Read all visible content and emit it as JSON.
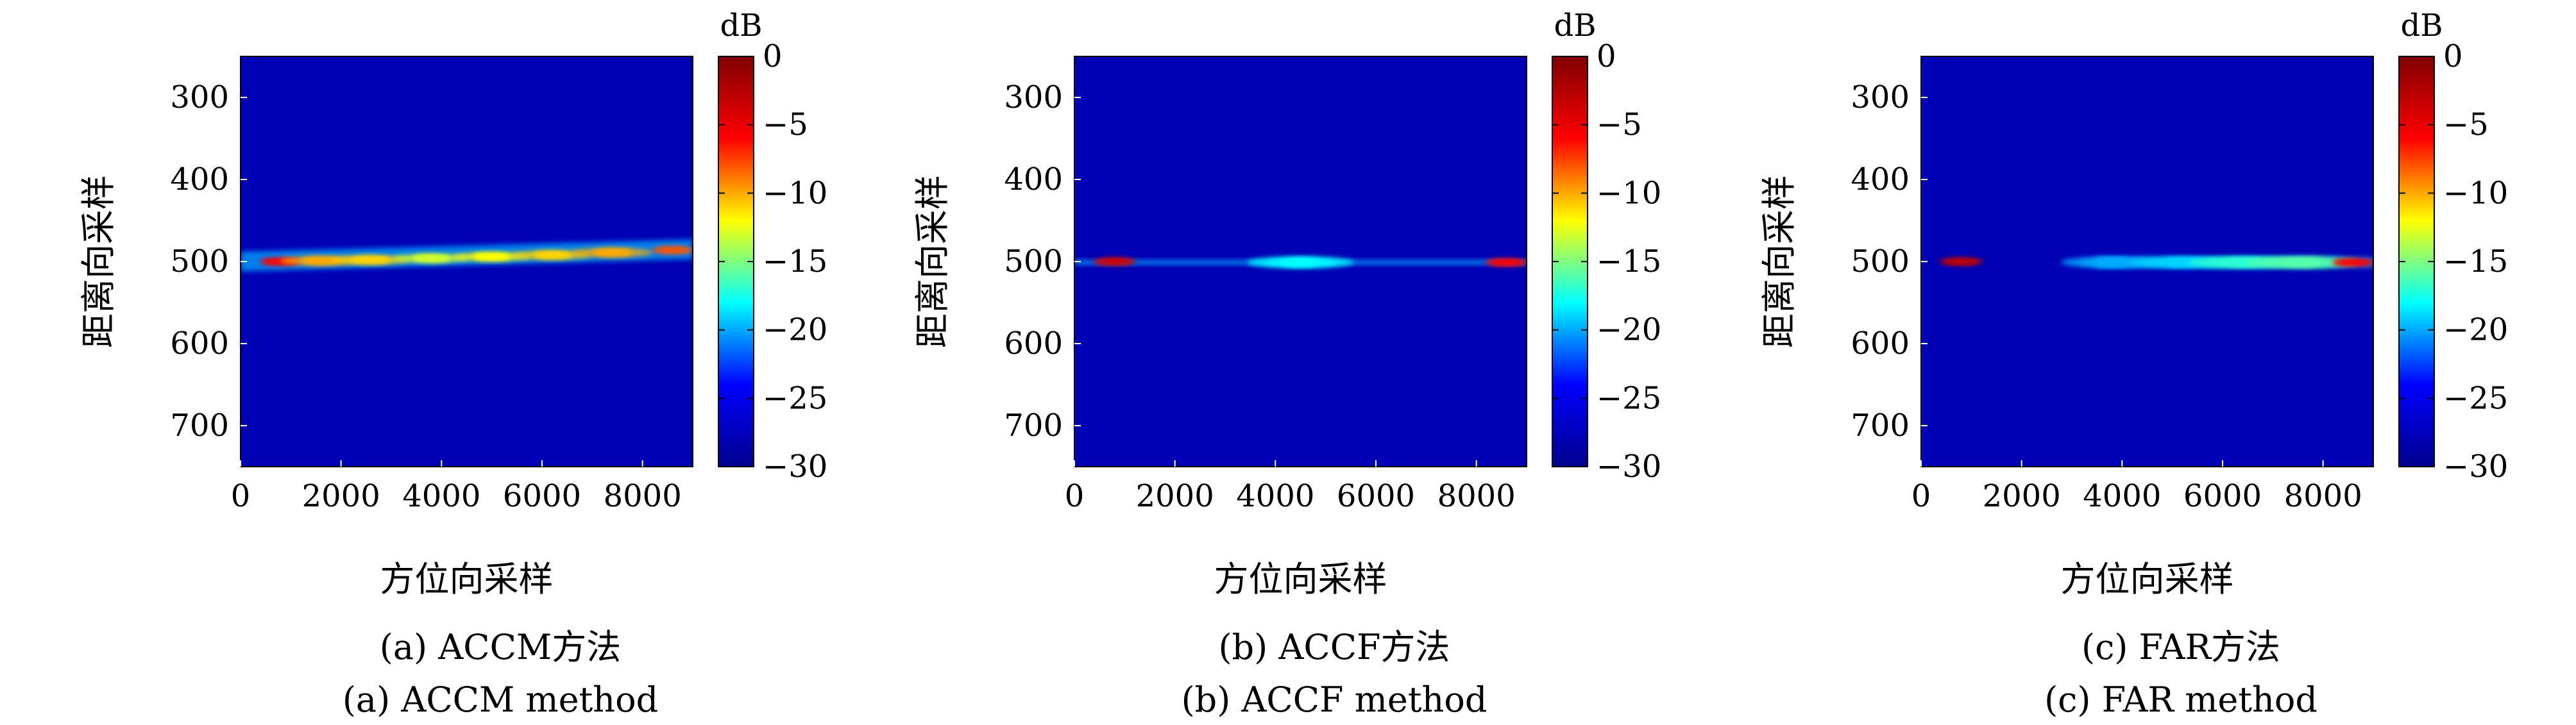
{
  "colormap": [
    "#00008f",
    "#0000ff",
    "#00ffff",
    "#ffff00",
    "#ff0000",
    "#800000"
  ],
  "chart_data": [
    {
      "type": "heatmap",
      "caption_zh": "(a) ACCM方法",
      "caption_en": "(a) ACCM method",
      "xlabel": "方位向采样",
      "ylabel": "距离向采样",
      "xlim": [
        0,
        9000
      ],
      "ylim": [
        250,
        750
      ],
      "xticks": [
        "0",
        "2000",
        "4000",
        "6000",
        "8000"
      ],
      "yticks": [
        "300",
        "400",
        "500",
        "600",
        "700"
      ],
      "colorbar": {
        "unit": "dB",
        "range": [
          -30,
          0
        ],
        "ticks": [
          "0",
          "−5",
          "−10",
          "−15",
          "−20",
          "−25",
          "−30"
        ]
      },
      "background_db": -28,
      "band": {
        "x_start": 0,
        "x_end": 9000,
        "y_start": 500,
        "y_end": 485,
        "half_width": 12
      },
      "hotspots": [
        {
          "x": 800,
          "y": 500,
          "db": -6
        },
        {
          "x": 1600,
          "y": 499,
          "db": -10
        },
        {
          "x": 2600,
          "y": 498,
          "db": -11
        },
        {
          "x": 3800,
          "y": 496,
          "db": -13
        },
        {
          "x": 5000,
          "y": 494,
          "db": -12
        },
        {
          "x": 6200,
          "y": 492,
          "db": -11
        },
        {
          "x": 7400,
          "y": 489,
          "db": -10
        },
        {
          "x": 8600,
          "y": 486,
          "db": -8
        }
      ]
    },
    {
      "type": "heatmap",
      "caption_zh": "(b) ACCF方法",
      "caption_en": "(b) ACCF method",
      "xlabel": "方位向采样",
      "ylabel": "距离向采样",
      "xlim": [
        0,
        9000
      ],
      "ylim": [
        250,
        750
      ],
      "xticks": [
        "0",
        "2000",
        "4000",
        "6000",
        "8000"
      ],
      "yticks": [
        "300",
        "400",
        "500",
        "600",
        "700"
      ],
      "colorbar": {
        "unit": "dB",
        "range": [
          -30,
          0
        ],
        "ticks": [
          "0",
          "−5",
          "−10",
          "−15",
          "−20",
          "−25",
          "−30"
        ]
      },
      "background_db": -28,
      "band": {
        "x_start": 0,
        "x_end": 9000,
        "y_start": 501,
        "y_end": 501,
        "half_width": 3
      },
      "hotspots": [
        {
          "x": 800,
          "y": 500,
          "db": -4
        },
        {
          "x": 4500,
          "y": 501,
          "db": -18
        },
        {
          "x": 8600,
          "y": 501,
          "db": -6
        }
      ]
    },
    {
      "type": "heatmap",
      "caption_zh": "(c) FAR方法",
      "caption_en": "(c) FAR method",
      "xlabel": "方位向采样",
      "ylabel": "距离向采样",
      "xlim": [
        0,
        9000
      ],
      "ylim": [
        250,
        750
      ],
      "xticks": [
        "0",
        "2000",
        "4000",
        "6000",
        "8000"
      ],
      "yticks": [
        "300",
        "400",
        "500",
        "600",
        "700"
      ],
      "colorbar": {
        "unit": "dB",
        "range": [
          -30,
          0
        ],
        "ticks": [
          "0",
          "−5",
          "−10",
          "−15",
          "−20",
          "−25",
          "−30"
        ]
      },
      "background_db": -28,
      "band": {
        "x_start": 3500,
        "x_end": 9000,
        "y_start": 501,
        "y_end": 501,
        "half_width": 6
      },
      "hotspots": [
        {
          "x": 800,
          "y": 500,
          "db": -3
        },
        {
          "x": 3800,
          "y": 501,
          "db": -20
        },
        {
          "x": 5200,
          "y": 501,
          "db": -19
        },
        {
          "x": 6400,
          "y": 501,
          "db": -17
        },
        {
          "x": 7600,
          "y": 501,
          "db": -16
        },
        {
          "x": 8600,
          "y": 501,
          "db": -6
        }
      ]
    }
  ]
}
